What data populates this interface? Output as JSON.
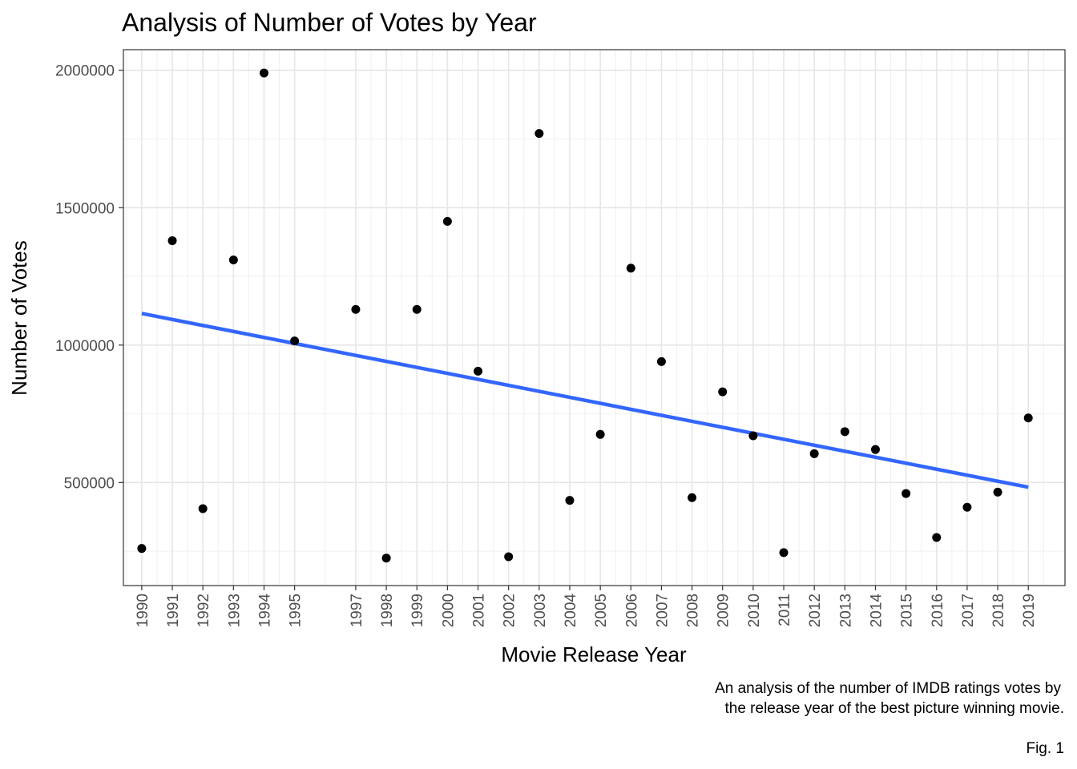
{
  "chart_data": {
    "type": "scatter",
    "title": "Analysis of Number of Votes by Year",
    "xlabel": "Movie Release Year",
    "ylabel": "Number of Votes",
    "caption_lines": [
      "An analysis of the number of IMDB ratings votes by",
      "the release year of the best picture winning movie."
    ],
    "figure_label": "Fig. 1",
    "x_tick_labels": [
      "1990",
      "1991",
      "1992",
      "1993",
      "1994",
      "1995",
      "1997",
      "1998",
      "1999",
      "2000",
      "2001",
      "2002",
      "2003",
      "2004",
      "2005",
      "2006",
      "2007",
      "2008",
      "2009",
      "2010",
      "2011",
      "2012",
      "2013",
      "2014",
      "2015",
      "2016",
      "2017",
      "2018",
      "2019"
    ],
    "y_ticks": [
      500000,
      1000000,
      1500000,
      2000000
    ],
    "y_tick_labels": [
      "500000",
      "1000000",
      "1500000",
      "2000000"
    ],
    "xlim": [
      1989.4,
      2020.2
    ],
    "ylim": [
      125000,
      2075000
    ],
    "grid": true,
    "series": [
      {
        "x": [
          1990,
          1991,
          1992,
          1993,
          1994,
          1995,
          1997,
          1998,
          1999,
          2000,
          2001,
          2002,
          2003,
          2004,
          2005,
          2006,
          2007,
          2008,
          2009,
          2010,
          2011,
          2012,
          2013,
          2014,
          2015,
          2016,
          2017,
          2018,
          2019
        ],
        "y": [
          260000,
          1380000,
          405000,
          1310000,
          1990000,
          1015000,
          1130000,
          225000,
          1130000,
          1450000,
          905000,
          230000,
          1770000,
          435000,
          675000,
          1280000,
          940000,
          445000,
          830000,
          670000,
          245000,
          605000,
          685000,
          620000,
          460000,
          300000,
          410000,
          465000,
          735000
        ],
        "color": "#000000"
      }
    ],
    "trend_line": {
      "method": "linear",
      "x": [
        1990,
        2019
      ],
      "y": [
        1115000,
        483000
      ],
      "color": "#3366FF"
    }
  }
}
